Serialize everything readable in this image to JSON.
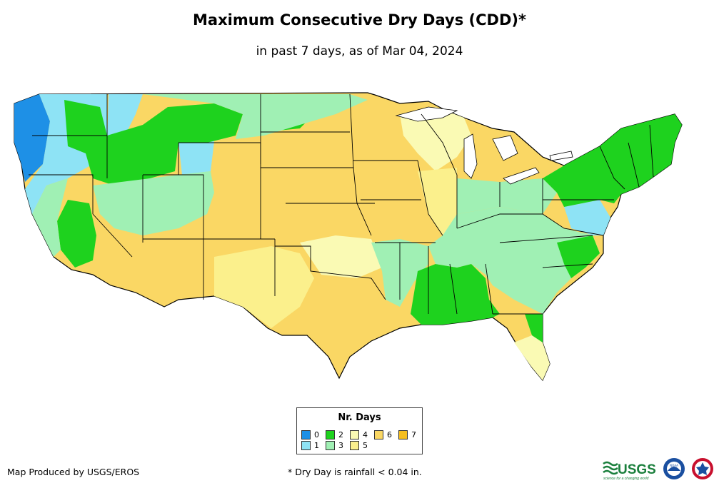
{
  "title": "Maximum Consecutive Dry Days (CDD)*",
  "subtitle": "in past 7 days, as of Mar 04, 2024",
  "legend": {
    "title": "Nr. Days",
    "items": [
      {
        "label": "0",
        "color": "#1e90e6"
      },
      {
        "label": "1",
        "color": "#8ee3f5"
      },
      {
        "label": "2",
        "color": "#1ed21e"
      },
      {
        "label": "3",
        "color": "#a0f0b4"
      },
      {
        "label": "4",
        "color": "#fafab4"
      },
      {
        "label": "5",
        "color": "#fbf08c"
      },
      {
        "label": "6",
        "color": "#fad764"
      },
      {
        "label": "7",
        "color": "#f5be1e"
      }
    ]
  },
  "credit": "Map Produced by USGS/EROS",
  "footnote": "* Dry Day is rainfall < 0.04 in.",
  "logos": {
    "usgs_text": "USGS",
    "usgs_tagline": "science for a changing world",
    "noaa_text": "NOAA"
  }
}
